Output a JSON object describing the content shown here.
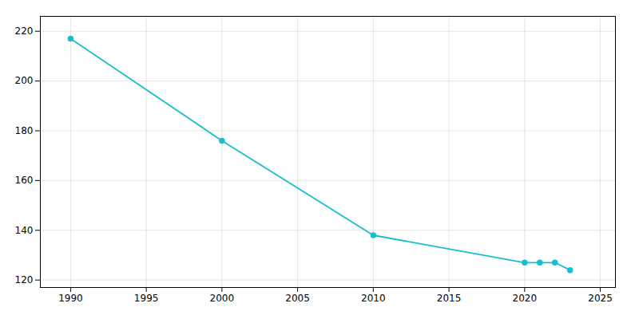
{
  "chart_data": {
    "type": "line",
    "x": [
      1990,
      2000,
      2010,
      2020,
      2021,
      2022,
      2023
    ],
    "values": [
      217,
      176,
      138,
      127,
      127,
      127,
      124
    ],
    "color": "#17becf",
    "marker": "circle",
    "xlim": [
      1988,
      2026
    ],
    "ylim": [
      117,
      226
    ],
    "xticks": [
      1990,
      1995,
      2000,
      2005,
      2010,
      2015,
      2020,
      2025
    ],
    "yticks": [
      120,
      140,
      160,
      180,
      200,
      220
    ],
    "grid": true
  }
}
